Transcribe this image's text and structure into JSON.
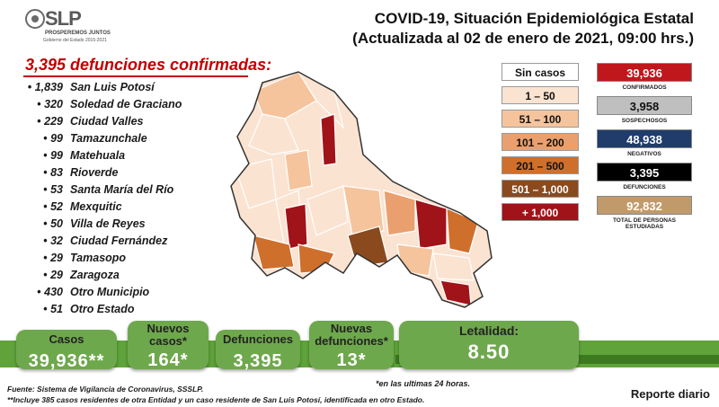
{
  "logo": {
    "text": "SLP",
    "tagline": "PROSPEREMOS JUNTOS",
    "subtitle": "Gobierno del Estado 2015-2021"
  },
  "header": {
    "title_line1": "COVID-19, Situación Epidemiológica Estatal",
    "title_line2": "(Actualizada al 02 de enero de 2021, 09:00 hrs.)"
  },
  "deaths_title": "3,395 defunciones confirmadas:",
  "municipalities": [
    {
      "count": "1,839",
      "name": "San Luis Potosí"
    },
    {
      "count": "320",
      "name": "Soledad de Graciano"
    },
    {
      "count": "229",
      "name": "Ciudad Valles"
    },
    {
      "count": "99",
      "name": "Tamazunchale"
    },
    {
      "count": "99",
      "name": "Matehuala"
    },
    {
      "count": "83",
      "name": "Rioverde"
    },
    {
      "count": "53",
      "name": "Santa María del Río"
    },
    {
      "count": "52",
      "name": "Mexquitic"
    },
    {
      "count": "50",
      "name": "Villa de Reyes"
    },
    {
      "count": "32",
      "name": "Ciudad Fernández"
    },
    {
      "count": "29",
      "name": "Tamasopo"
    },
    {
      "count": "29",
      "name": "Zaragoza"
    },
    {
      "count": "430",
      "name": "Otro Municipio"
    },
    {
      "count": "51",
      "name": "Otro Estado"
    }
  ],
  "legend": [
    {
      "label": "Sin casos",
      "color": "#ffffff",
      "text_color": "#111111"
    },
    {
      "label": "1 – 50",
      "color": "#fbe3d2",
      "text_color": "#111111"
    },
    {
      "label": "51 – 100",
      "color": "#f5c49d",
      "text_color": "#111111"
    },
    {
      "label": "101 – 200",
      "color": "#e9a06e",
      "text_color": "#111111"
    },
    {
      "label": "201 – 500",
      "color": "#cf6f2c",
      "text_color": "#111111"
    },
    {
      "label": "501 – 1,000",
      "color": "#8a4a1e",
      "text_color": "#ffffff"
    },
    {
      "label": "+ 1,000",
      "color": "#a01319",
      "text_color": "#ffffff"
    }
  ],
  "stats": [
    {
      "value": "39,936",
      "label": "CONFIRMADOS",
      "color": "#c0171c",
      "text_color": "#ffffff"
    },
    {
      "value": "3,958",
      "label": "SOSPECHOSOS",
      "color": "#bfbfbf",
      "text_color": "#111111"
    },
    {
      "value": "48,938",
      "label": "NEGATIVOS",
      "color": "#1f3c6b",
      "text_color": "#ffffff"
    },
    {
      "value": "3,395",
      "label": "DEFUNCIONES",
      "color": "#000000",
      "text_color": "#ffffff"
    },
    {
      "value": "92,832",
      "label": "TOTAL DE PERSONAS ESTUDIADAS",
      "color": "#c19a6b",
      "text_color": "#ffffff"
    }
  ],
  "summary": {
    "cases_label": "Casos",
    "cases_value": "39,936**",
    "new_cases_label": "Nuevos casos*",
    "new_cases_value": "164*",
    "deaths_label": "Defunciones",
    "deaths_value": "3,395",
    "new_deaths_label": "Nuevas defunciones*",
    "new_deaths_value": "13*",
    "lethality_label": "Letalidad:",
    "lethality_value": "8.50"
  },
  "footnote_24h": "*en las ultimas 24 horas.",
  "source_line1": "Fuente: Sistema de Vigilancia de Coronavirus, SSSLP.",
  "source_line2": "**Incluye 385 casos residentes de otra Entidad y un caso residente de San Luis Potosí, identificada en otro Estado.",
  "report_label": "Reporte diario",
  "colors": {
    "accent_red": "#c00000",
    "band_green": "#5fa33a",
    "card_green": "#6ea84c"
  }
}
